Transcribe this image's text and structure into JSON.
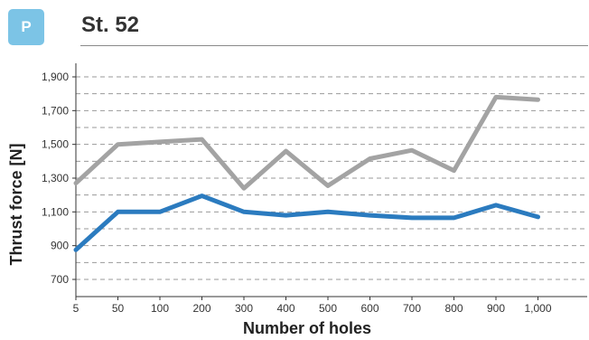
{
  "header": {
    "badge": "P",
    "title": "St. 52"
  },
  "colors": {
    "badge": "#7cc4e6",
    "grid": "#9a9a9a",
    "axis": "#333333"
  },
  "chart_data": {
    "type": "line",
    "title": "St. 52",
    "xlabel": "Number of holes",
    "ylabel": "Thrust force [N]",
    "categories": [
      "5",
      "50",
      "100",
      "200",
      "300",
      "400",
      "500",
      "600",
      "700",
      "800",
      "900",
      "1,000"
    ],
    "y_ticks": [
      "700",
      "900",
      "1,100",
      "1,300",
      "1,500",
      "1,700",
      "1,900"
    ],
    "y_tick_values": [
      700,
      900,
      1100,
      1300,
      1500,
      1700,
      1900
    ],
    "ylim": [
      600,
      1950
    ],
    "grid": true,
    "gridlines_at": [
      700,
      800,
      900,
      1000,
      1100,
      1200,
      1300,
      1400,
      1500,
      1600,
      1700,
      1800,
      1900
    ],
    "series": [
      {
        "color": "#a3a3a3",
        "values": [
          1270,
          1500,
          1515,
          1530,
          1240,
          1460,
          1255,
          1415,
          1465,
          1345,
          1780,
          1765
        ]
      },
      {
        "color": "#2b7bbf",
        "values": [
          875,
          1100,
          1100,
          1195,
          1100,
          1080,
          1100,
          1080,
          1065,
          1065,
          1140,
          1070
        ]
      }
    ]
  }
}
